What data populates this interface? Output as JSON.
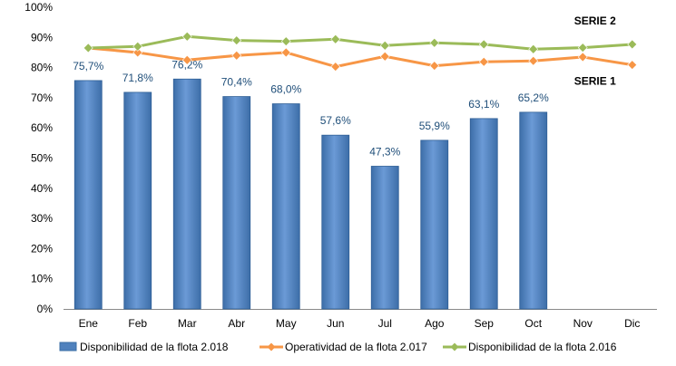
{
  "chart_data": {
    "type": "bar",
    "categories": [
      "Ene",
      "Feb",
      "Mar",
      "Abr",
      "May",
      "Jun",
      "Jul",
      "Ago",
      "Sep",
      "Oct",
      "Nov",
      "Dic"
    ],
    "ylim": [
      0,
      100
    ],
    "yticks": [
      "0%",
      "10%",
      "20%",
      "30%",
      "40%",
      "50%",
      "60%",
      "70%",
      "80%",
      "90%",
      "100%"
    ],
    "grid": false,
    "legend_position": "bottom",
    "series": [
      {
        "name": "Disponibilidad de la flota 2.018",
        "type": "bar",
        "color": "#4f81bd",
        "values": [
          75.7,
          71.8,
          76.2,
          70.4,
          68.0,
          57.6,
          47.3,
          55.9,
          63.1,
          65.2,
          null,
          null
        ],
        "labels": [
          "75,7%",
          "71,8%",
          "76,2%",
          "70,4%",
          "68,0%",
          "57,6%",
          "47,3%",
          "55,9%",
          "63,1%",
          "65,2%",
          "",
          ""
        ]
      },
      {
        "name": "Operatividad de la flota 2.017",
        "type": "line",
        "color": "#f79646",
        "values": [
          86.5,
          85.0,
          82.5,
          84.0,
          85.0,
          80.3,
          83.7,
          80.6,
          81.9,
          82.2,
          83.5,
          80.9
        ]
      },
      {
        "name": "Disponibilidad de la flota 2.016",
        "type": "line",
        "color": "#9bbb59",
        "values": [
          86.5,
          87.0,
          90.3,
          89.0,
          88.7,
          89.4,
          87.3,
          88.2,
          87.7,
          86.1,
          86.6,
          87.7
        ]
      }
    ],
    "annotations": [
      {
        "text": "SERIE 2",
        "series_index": 2
      },
      {
        "text": "SERIE 1",
        "series_index": 1
      }
    ]
  }
}
